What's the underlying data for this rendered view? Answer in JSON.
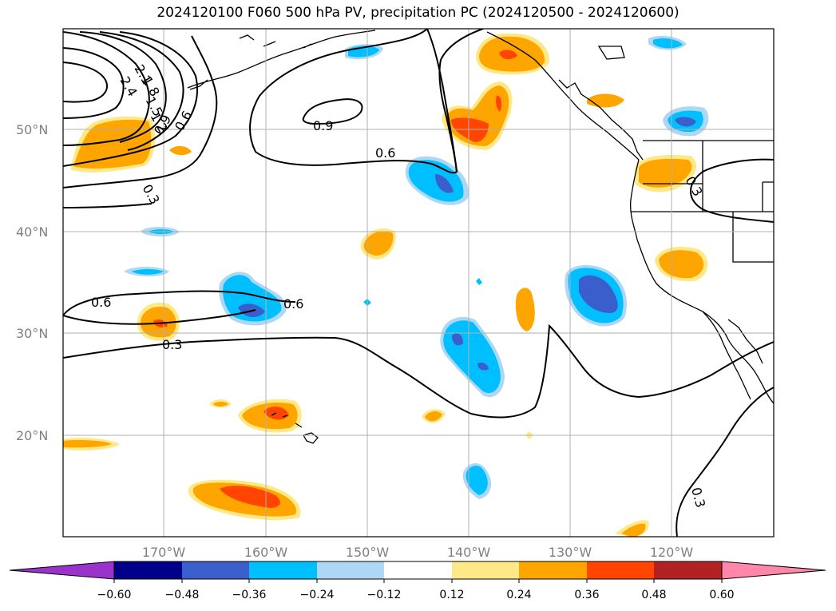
{
  "title": "2024120100 F060 500 hPa PV, precipitation PC (2024120500 - 2024120600)",
  "map": {
    "lat_labels": [
      "50°N",
      "40°N",
      "30°N",
      "20°N"
    ],
    "lon_labels": [
      "170°W",
      "160°W",
      "150°W",
      "140°W",
      "130°W",
      "120°W"
    ],
    "pv_contour_labels": [
      "2.4",
      "2.1",
      "1.8",
      "1.5",
      "1.2",
      "0.9",
      "0.6",
      "0.3",
      "0.9",
      "0.6",
      "0.3",
      "0.6",
      "0.6",
      "0.3",
      "0.3"
    ]
  },
  "colorbar": {
    "colors": [
      "#9933cc",
      "#00008b",
      "#3a5fcd",
      "#00bfff",
      "#add8f5",
      "#ffffff",
      "#ffe987",
      "#ffa500",
      "#ff4500",
      "#b22222",
      "#ff88aa"
    ],
    "tick_labels": [
      "−0.60",
      "−0.48",
      "−0.36",
      "−0.24",
      "−0.12",
      "0.12",
      "0.24",
      "0.36",
      "0.48",
      "0.60"
    ]
  }
}
